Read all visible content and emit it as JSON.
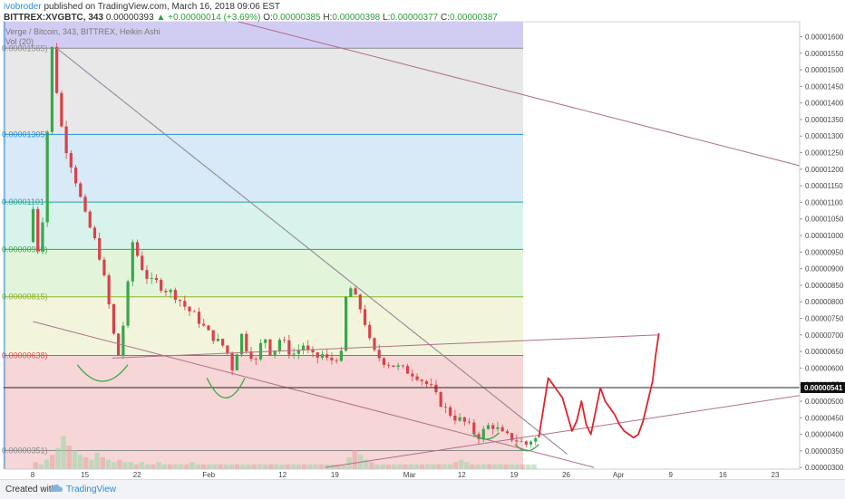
{
  "header": {
    "author": "ivobroder",
    "published": "published on TradingView.com, March 16, 2018 09:06 EST",
    "symbol": "BITTREX:XVGBTC, 343",
    "last": "0.00000393",
    "change": "+0.00000014 (+3.69%)",
    "o_label": "O:",
    "o": "0.00000385",
    "h_label": "H:",
    "h": "0.00000398",
    "l_label": "L:",
    "l": "0.00000377",
    "c_label": "C:",
    "c": "0.00000387"
  },
  "subinfo": {
    "series": "Verge / Bitcoin, 343, BITTREX, Heikin Ashi",
    "volume": "Vol (20)"
  },
  "footer": {
    "created": "Created with",
    "brand": "TradingView"
  },
  "chart_data": {
    "type": "line",
    "chart_style": "Heikin Ashi candlesticks",
    "ylim": [
      2.95e-06,
      1.645e-05
    ],
    "y_ticks": [
      "0.00001600",
      "0.00001550",
      "0.00001500",
      "0.00001450",
      "0.00001400",
      "0.00001350",
      "0.00001300",
      "0.00001250",
      "0.00001200",
      "0.00001150",
      "0.00001100",
      "0.00001050",
      "0.00001000",
      "0.00000950",
      "0.00000900",
      "0.00000850",
      "0.00000800",
      "0.00000750",
      "0.00000700",
      "0.00000650",
      "0.00000600",
      "0.00000550",
      "0.00000500",
      "0.00000450",
      "0.00000400",
      "0.00000350",
      "0.00000300"
    ],
    "x_ticks": [
      "8",
      "15",
      "22",
      "Feb",
      "12",
      "19",
      "Mar",
      "12",
      "19",
      "26",
      "Apr",
      "9",
      "16",
      "23"
    ],
    "current_price": "0.00000541",
    "fib_levels": [
      {
        "label": "0.00001565)",
        "value": 1.565e-05,
        "color": "#8a8a8a"
      },
      {
        "label": "0.00001305)",
        "value": 1.305e-05,
        "color": "#2b8fd6"
      },
      {
        "label": "0.00001101",
        "value": 1.101e-05,
        "color": "#2aa198"
      },
      {
        "label": "0.00000958)",
        "value": 9.58e-06,
        "color": "#3aa64a"
      },
      {
        "label": "0.00000815)",
        "value": 8.15e-06,
        "color": "#8fb32e"
      },
      {
        "label": "0.00000638)",
        "value": 6.38e-06,
        "color": "#e05050"
      },
      {
        "label": "0.00000351)",
        "value": 3.51e-06,
        "color": "#8a8a8a"
      }
    ],
    "fib_zones": [
      {
        "from": 1.645e-05,
        "to": 1.565e-05,
        "color": "#d1cdf2"
      },
      {
        "from": 1.565e-05,
        "to": 1.305e-05,
        "color": "#e8e8e8"
      },
      {
        "from": 1.305e-05,
        "to": 1.101e-05,
        "color": "#d8e9f8"
      },
      {
        "from": 1.101e-05,
        "to": 9.58e-06,
        "color": "#d8f3ec"
      },
      {
        "from": 9.58e-06,
        "to": 8.15e-06,
        "color": "#e2f5db"
      },
      {
        "from": 8.15e-06,
        "to": 6.38e-06,
        "color": "#f2f5dc"
      },
      {
        "from": 6.38e-06,
        "to": 2.95e-06,
        "color": "#f6d6d6"
      }
    ],
    "price_path": [
      [
        0.0,
        9.8e-06
      ],
      [
        0.3,
        1.08e-05
      ],
      [
        0.6,
        9.6e-06
      ],
      [
        0.9,
        1.05e-05
      ],
      [
        1.1,
        1.21e-05
      ],
      [
        1.3,
        1.42e-05
      ],
      [
        1.5,
        1.565e-05
      ],
      [
        1.7,
        1.48e-05
      ],
      [
        2.0,
        1.35e-05
      ],
      [
        2.4,
        1.26e-05
      ],
      [
        2.8,
        1.2e-05
      ],
      [
        3.2,
        1.13e-05
      ],
      [
        3.6,
        1.06e-05
      ],
      [
        4.0,
        1.01e-05
      ],
      [
        4.4,
        9.6e-06
      ],
      [
        4.8,
        8.7e-06
      ],
      [
        5.1,
        7.9e-06
      ],
      [
        5.4,
        7e-06
      ],
      [
        5.7,
        6.4e-06
      ],
      [
        6.0,
        7.3e-06
      ],
      [
        6.3,
        8.5e-06
      ],
      [
        6.6,
        9.8e-06
      ],
      [
        6.9,
        9.4e-06
      ],
      [
        7.3,
        8.9e-06
      ],
      [
        7.7,
        8.6e-06
      ],
      [
        8.1,
        8.6e-06
      ],
      [
        8.5,
        8.4e-06
      ],
      [
        9.0,
        8.3e-06
      ],
      [
        9.5,
        8.1e-06
      ],
      [
        10.0,
        7.8e-06
      ],
      [
        10.5,
        7.6e-06
      ],
      [
        11.0,
        7.3e-06
      ],
      [
        11.5,
        7e-06
      ],
      [
        12.0,
        6.8e-06
      ],
      [
        12.5,
        6.6e-06
      ],
      [
        12.9,
        6e-06
      ],
      [
        13.2,
        6.5e-06
      ],
      [
        13.5,
        7e-06
      ],
      [
        13.8,
        6.6e-06
      ],
      [
        14.1,
        6.4e-06
      ],
      [
        14.4,
        6.2e-06
      ],
      [
        14.7,
        6.7e-06
      ],
      [
        15.0,
        6.9e-06
      ],
      [
        15.3,
        6.5e-06
      ],
      [
        15.7,
        6.6e-06
      ],
      [
        16.0,
        7e-06
      ],
      [
        16.3,
        6.6e-06
      ],
      [
        16.7,
        6.4e-06
      ],
      [
        17.0,
        6.5e-06
      ],
      [
        17.4,
        6.7e-06
      ],
      [
        17.8,
        6.4e-06
      ],
      [
        18.2,
        6.3e-06
      ],
      [
        18.6,
        6.4e-06
      ],
      [
        19.0,
        6.2e-06
      ],
      [
        19.4,
        6.3e-06
      ],
      [
        19.8,
        6.4e-06
      ],
      [
        20.0,
        7.6e-06
      ],
      [
        20.2,
        8.6e-06
      ],
      [
        20.5,
        8.3e-06
      ],
      [
        20.8,
        8e-06
      ],
      [
        21.1,
        7.7e-06
      ],
      [
        21.4,
        7.2e-06
      ],
      [
        21.7,
        6.6e-06
      ],
      [
        22.0,
        6.4e-06
      ],
      [
        22.5,
        6.2e-06
      ],
      [
        23.0,
        6.1e-06
      ],
      [
        23.5,
        6e-06
      ],
      [
        24.0,
        5.9e-06
      ],
      [
        24.5,
        5.8e-06
      ],
      [
        25.0,
        5.6e-06
      ],
      [
        25.5,
        5.4e-06
      ],
      [
        26.0,
        5e-06
      ],
      [
        26.5,
        4.7e-06
      ],
      [
        27.0,
        4.5e-06
      ],
      [
        27.5,
        4.4e-06
      ],
      [
        28.0,
        4.2e-06
      ],
      [
        28.4,
        3.9e-06
      ],
      [
        28.8,
        4.1e-06
      ],
      [
        29.2,
        4.3e-06
      ],
      [
        29.6,
        4.2e-06
      ],
      [
        30.0,
        4e-06
      ],
      [
        30.5,
        3.9e-06
      ],
      [
        31.0,
        3.8e-06
      ],
      [
        31.5,
        3.7e-06
      ],
      [
        31.9,
        3.87e-06
      ]
    ],
    "projection": [
      [
        32.0,
        3.9e-06
      ],
      [
        32.3,
        4.8e-06
      ],
      [
        32.6,
        5.7e-06
      ],
      [
        32.9,
        5.5e-06
      ],
      [
        33.2,
        5.3e-06
      ],
      [
        33.5,
        5.1e-06
      ],
      [
        33.8,
        4.6e-06
      ],
      [
        34.1,
        4.1e-06
      ],
      [
        34.4,
        4.4e-06
      ],
      [
        34.7,
        5e-06
      ],
      [
        35.0,
        4.3e-06
      ],
      [
        35.3,
        4e-06
      ],
      [
        35.6,
        4.7e-06
      ],
      [
        35.9,
        5.4e-06
      ],
      [
        36.2,
        5e-06
      ],
      [
        36.5,
        4.8e-06
      ],
      [
        36.8,
        4.6e-06
      ],
      [
        37.1,
        4.3e-06
      ],
      [
        37.4,
        4.1e-06
      ],
      [
        37.7,
        4e-06
      ],
      [
        38.0,
        3.9e-06
      ],
      [
        38.3,
        4e-06
      ],
      [
        38.6,
        4.4e-06
      ],
      [
        38.9,
        5e-06
      ],
      [
        39.2,
        5.6e-06
      ],
      [
        39.4,
        6.4e-06
      ],
      [
        39.6,
        7.05e-06
      ]
    ],
    "trend_lines": [
      {
        "from": [
          1.5,
          1.565e-05
        ],
        "to": [
          33.8,
          3.4e-06
        ],
        "color": "#8b7aa0"
      },
      {
        "from": [
          1.5,
          1.565e-05
        ],
        "to": [
          33.3,
          3.6e-06
        ],
        "color": "#999999",
        "dashed": true
      },
      {
        "from": [
          0.0,
          7.4e-06
        ],
        "to": [
          35.5,
          3e-06
        ],
        "color": "#b07088"
      },
      {
        "from": [
          5.0,
          6.3e-06
        ],
        "to": [
          39.6,
          7e-06
        ],
        "color": "#b07088"
      },
      {
        "from": [
          18.5,
          3e-06
        ],
        "to": [
          51.0,
          5.35e-06
        ],
        "color": "#b07088"
      },
      {
        "from": [
          13.0,
          1.645e-05
        ],
        "to": [
          51.0,
          1.18e-05
        ],
        "color": "#b07088"
      }
    ],
    "volume": [
      3,
      2,
      4,
      6,
      9,
      14,
      10,
      8,
      6,
      5,
      4,
      7,
      5,
      4,
      3,
      4,
      3,
      3,
      2,
      3,
      2,
      2,
      3,
      2,
      2,
      2,
      2,
      2,
      3,
      2,
      2,
      2,
      2,
      2,
      2,
      2,
      2,
      2,
      2,
      2,
      2,
      2,
      2,
      2,
      2,
      2,
      2,
      2,
      2,
      2,
      2,
      2,
      2,
      2,
      2,
      2,
      5,
      8,
      6,
      4,
      3,
      2,
      2,
      2,
      2,
      2,
      2,
      2,
      2,
      2,
      2,
      2,
      2,
      2,
      2,
      3,
      4,
      3,
      2,
      2,
      2,
      2,
      2,
      2,
      2,
      2,
      2,
      2,
      2,
      2
    ]
  }
}
